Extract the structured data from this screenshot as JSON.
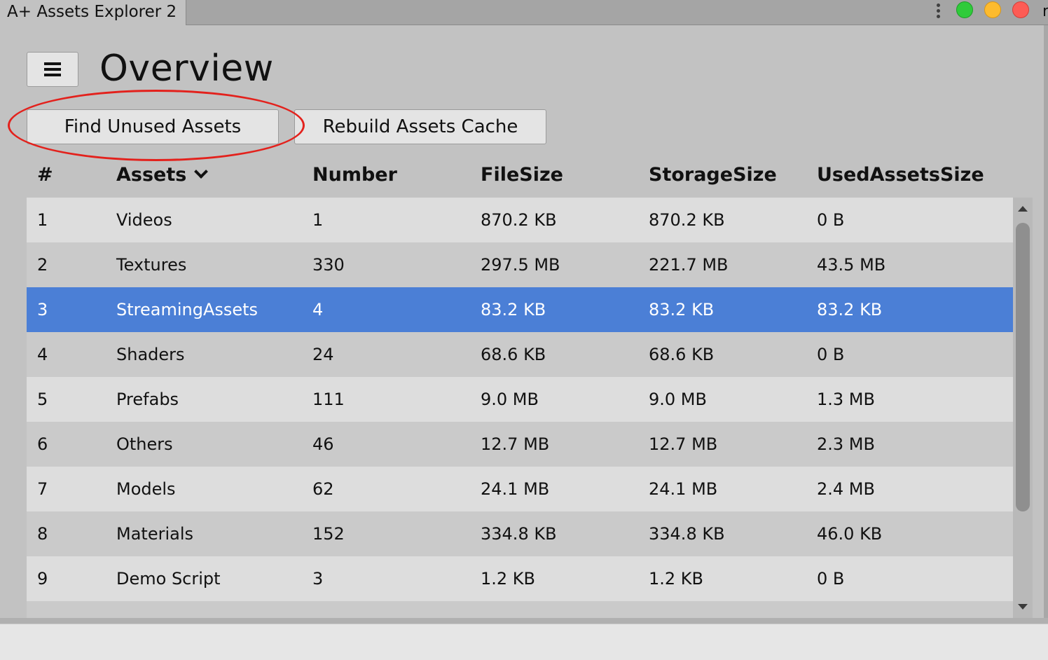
{
  "window": {
    "tab_title": "A+ Assets Explorer 2",
    "edge_text": "r"
  },
  "header": {
    "title": "Overview"
  },
  "toolbar": {
    "find_unused_label": "Find Unused Assets",
    "rebuild_cache_label": "Rebuild Assets Cache"
  },
  "table": {
    "columns": [
      "#",
      "Assets",
      "Number",
      "FileSize",
      "StorageSize",
      "UsedAssetsSize"
    ],
    "sorted_column": "Assets",
    "rows": [
      {
        "idx": "1",
        "assets": "Videos",
        "number": "1",
        "filesize": "870.2 KB",
        "storagesize": "870.2 KB",
        "usedsize": "0 B"
      },
      {
        "idx": "2",
        "assets": "Textures",
        "number": "330",
        "filesize": "297.5 MB",
        "storagesize": "221.7 MB",
        "usedsize": "43.5 MB"
      },
      {
        "idx": "3",
        "assets": "StreamingAssets",
        "number": "4",
        "filesize": "83.2 KB",
        "storagesize": "83.2 KB",
        "usedsize": "83.2 KB"
      },
      {
        "idx": "4",
        "assets": "Shaders",
        "number": "24",
        "filesize": "68.6 KB",
        "storagesize": "68.6 KB",
        "usedsize": "0 B"
      },
      {
        "idx": "5",
        "assets": "Prefabs",
        "number": "111",
        "filesize": "9.0 MB",
        "storagesize": "9.0 MB",
        "usedsize": "1.3 MB"
      },
      {
        "idx": "6",
        "assets": "Others",
        "number": "46",
        "filesize": "12.7 MB",
        "storagesize": "12.7 MB",
        "usedsize": "2.3 MB"
      },
      {
        "idx": "7",
        "assets": "Models",
        "number": "62",
        "filesize": "24.1 MB",
        "storagesize": "24.1 MB",
        "usedsize": "2.4 MB"
      },
      {
        "idx": "8",
        "assets": "Materials",
        "number": "152",
        "filesize": "334.8 KB",
        "storagesize": "334.8 KB",
        "usedsize": "46.0 KB"
      },
      {
        "idx": "9",
        "assets": "Demo Script",
        "number": "3",
        "filesize": "1.2 KB",
        "storagesize": "1.2 KB",
        "usedsize": "0 B"
      }
    ],
    "selected_row_index": 2
  },
  "colors": {
    "selection": "#4b7fd6",
    "annotation": "#e3211c",
    "traffic_green": "#2fcb3a",
    "traffic_yellow": "#fdbb2e",
    "traffic_red": "#fd5c55"
  },
  "icons": [
    "menu-icon",
    "chevron-down-icon",
    "more-vertical-icon",
    "scroll-up-icon",
    "scroll-down-icon"
  ]
}
